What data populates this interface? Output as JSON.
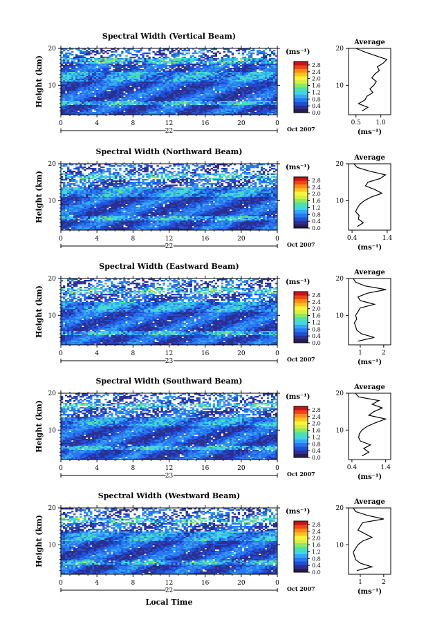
{
  "colors": {
    "scale": [
      "#2b1b4f",
      "#2c2f8f",
      "#1f4fd6",
      "#2a78f0",
      "#35a8f5",
      "#3fd6e6",
      "#4fe0a8",
      "#8ee860",
      "#d6f040",
      "#fff23a",
      "#ffc21f",
      "#ff8a1a",
      "#f04418",
      "#c81414"
    ],
    "line": "#000000",
    "background": "#ffffff"
  },
  "chart_data": [
    {
      "type": "heatmap",
      "title": "Spectral Width (Vertical Beam)",
      "ylabel": "Height (km)",
      "xticks": [
        "0",
        "4",
        "8",
        "12",
        "16",
        "20",
        "0"
      ],
      "yticks": [
        "20",
        "10"
      ],
      "xlim": [
        0,
        24
      ],
      "ylim": [
        2,
        20
      ],
      "date_label": "22",
      "date_suffix": "Oct 2007",
      "colorbar": {
        "unit": "(ms⁻¹)",
        "ticks": [
          "2.8",
          "2.4",
          "2.0",
          "1.6",
          "1.2",
          "0.8",
          "0.4",
          "0.0"
        ],
        "range": [
          0.0,
          3.0
        ]
      },
      "profile": {
        "title": "Average",
        "xlabel": "(ms⁻¹)",
        "xticks": [
          "0.5",
          "1.0"
        ],
        "xlim": [
          0.35,
          1.2
        ],
        "heights": [
          3,
          4,
          5,
          6,
          7,
          8,
          9,
          10,
          11,
          12,
          13,
          14,
          15,
          16,
          17,
          18,
          19,
          20
        ],
        "values": [
          0.62,
          0.74,
          0.55,
          0.68,
          0.72,
          0.84,
          0.78,
          0.86,
          0.91,
          0.82,
          0.88,
          0.97,
          0.93,
          1.05,
          1.12,
          0.9,
          0.68,
          0.5
        ]
      }
    },
    {
      "type": "heatmap",
      "title": "Spectral Width (Northward Beam)",
      "ylabel": "Height (km)",
      "xticks": [
        "0",
        "4",
        "8",
        "12",
        "16",
        "20",
        "0"
      ],
      "yticks": [
        "20",
        "10"
      ],
      "xlim": [
        0,
        24
      ],
      "ylim": [
        2,
        20
      ],
      "date_label": "22",
      "date_suffix": "Oct 2007",
      "colorbar": {
        "unit": "(ms⁻¹)",
        "ticks": [
          "2.8",
          "2.4",
          "2.0",
          "1.6",
          "1.2",
          "0.8",
          "0.4",
          "0.0"
        ],
        "range": [
          0.0,
          3.0
        ]
      },
      "profile": {
        "title": "Average",
        "xlabel": "(ms⁻¹)",
        "xticks": [
          "0.4",
          "1.4"
        ],
        "xlim": [
          0.3,
          1.5
        ],
        "heights": [
          3,
          4,
          5,
          6,
          7,
          8,
          9,
          10,
          11,
          12,
          13,
          14,
          15,
          16,
          17,
          18,
          19,
          20
        ],
        "values": [
          0.55,
          0.72,
          0.58,
          0.6,
          0.5,
          0.55,
          0.62,
          0.75,
          0.95,
          1.25,
          1.05,
          0.78,
          0.85,
          1.2,
          1.35,
          0.9,
          0.55,
          0.45
        ]
      }
    },
    {
      "type": "heatmap",
      "title": "Spectral Width (Eastward Beam)",
      "ylabel": "Height (km)",
      "xticks": [
        "0",
        "4",
        "8",
        "12",
        "16",
        "20",
        "0"
      ],
      "yticks": [
        "20",
        "10"
      ],
      "xlim": [
        0,
        24
      ],
      "ylim": [
        2,
        20
      ],
      "date_label": "23",
      "date_suffix": "Oct 2007",
      "colorbar": {
        "unit": "(ms⁻¹)",
        "ticks": [
          "2.8",
          "2.4",
          "2.0",
          "1.6",
          "1.2",
          "0.8",
          "0.4",
          "0.0"
        ],
        "range": [
          0.0,
          3.0
        ]
      },
      "profile": {
        "title": "Average",
        "xlabel": "(ms⁻¹)",
        "xticks": [
          "1",
          "2"
        ],
        "xlim": [
          0.5,
          2.3
        ],
        "heights": [
          3,
          4,
          5,
          6,
          7,
          8,
          9,
          10,
          11,
          12,
          13,
          14,
          15,
          16,
          17,
          18,
          19,
          20
        ],
        "values": [
          0.9,
          1.6,
          1.05,
          0.85,
          0.8,
          0.75,
          0.85,
          0.8,
          0.9,
          1.0,
          1.6,
          1.0,
          0.9,
          1.3,
          2.1,
          1.2,
          0.8,
          0.7
        ]
      }
    },
    {
      "type": "heatmap",
      "title": "Spectral Width (Southward Beam)",
      "ylabel": "Height (km)",
      "xticks": [
        "0",
        "4",
        "8",
        "12",
        "16",
        "20",
        "0"
      ],
      "yticks": [
        "20",
        "10"
      ],
      "xlim": [
        0,
        24
      ],
      "ylim": [
        2,
        20
      ],
      "date_label": "23",
      "date_suffix": "Oct 2007",
      "colorbar": {
        "unit": "(ms⁻¹)",
        "ticks": [
          "2.8",
          "2.4",
          "2.0",
          "1.6",
          "1.2",
          "0.8",
          "0.4",
          "0.0"
        ],
        "range": [
          0.0,
          3.0
        ]
      },
      "profile": {
        "title": "Average",
        "xlabel": "(ms⁻¹)",
        "xticks": [
          "0.4",
          "1.4"
        ],
        "xlim": [
          0.3,
          1.55
        ],
        "heights": [
          3,
          4,
          5,
          6,
          7,
          8,
          9,
          10,
          11,
          12,
          13,
          14,
          15,
          16,
          17,
          18,
          19,
          20
        ],
        "values": [
          0.7,
          0.9,
          0.75,
          0.95,
          0.65,
          0.6,
          0.62,
          0.7,
          0.85,
          1.1,
          1.4,
          0.9,
          1.05,
          1.3,
          1.0,
          1.2,
          0.6,
          0.5
        ]
      }
    },
    {
      "type": "heatmap",
      "title": "Spectral Width (Westward Beam)",
      "ylabel": "Height (km)",
      "xlabel": "Local Time",
      "xticks": [
        "0",
        "4",
        "8",
        "12",
        "16",
        "20",
        "0"
      ],
      "yticks": [
        "20",
        "10"
      ],
      "xlim": [
        0,
        24
      ],
      "ylim": [
        2,
        20
      ],
      "date_label": "22",
      "date_suffix": "Oct 2007",
      "colorbar": {
        "unit": "(ms⁻¹)",
        "ticks": [
          "2.8",
          "2.4",
          "2.0",
          "1.6",
          "1.2",
          "0.8",
          "0.4",
          "0.0"
        ],
        "range": [
          0.0,
          3.0
        ]
      },
      "profile": {
        "title": "Average",
        "xlabel": "(ms⁻¹)",
        "xticks": [
          "1",
          "2"
        ],
        "xlim": [
          0.5,
          2.3
        ],
        "heights": [
          3,
          4,
          5,
          6,
          7,
          8,
          9,
          10,
          11,
          12,
          13,
          14,
          15,
          16,
          17,
          18,
          19,
          20
        ],
        "values": [
          0.85,
          1.5,
          1.0,
          0.8,
          0.75,
          0.7,
          0.8,
          0.9,
          1.1,
          1.5,
          1.2,
          0.9,
          1.0,
          1.1,
          2.0,
          1.3,
          0.8,
          0.7
        ]
      }
    }
  ]
}
